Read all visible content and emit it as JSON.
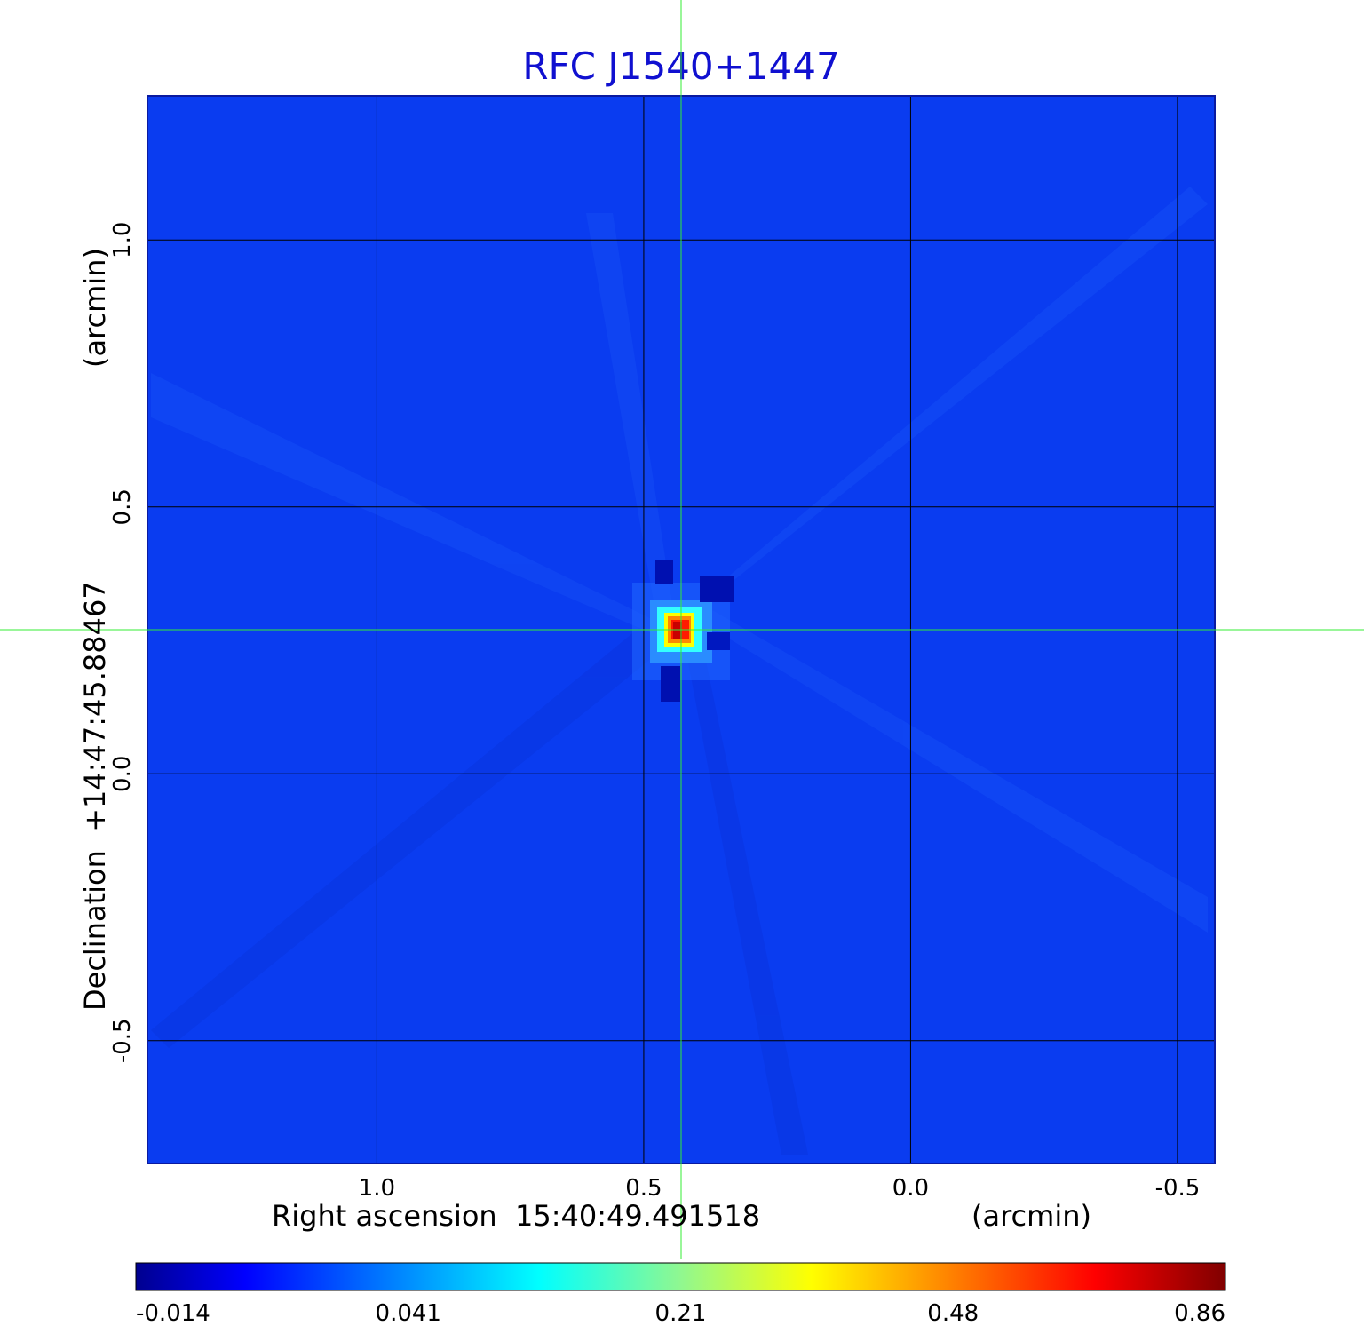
{
  "chart_data": {
    "type": "heatmap",
    "title": "RFC J1540+1447",
    "xlabel": "Right ascension  15:40:49.491518",
    "xunit": "(arcmin)",
    "ylabel": "Declination  +14:47:45.88467",
    "yunit": "(arcmin)",
    "x_axis_reversed": true,
    "xlim": [
      1.43,
      -0.57
    ],
    "ylim": [
      -0.73,
      1.27
    ],
    "x_ticks": [
      {
        "value": 1.0,
        "label": "1.0"
      },
      {
        "value": 0.5,
        "label": "0.5"
      },
      {
        "value": 0.0,
        "label": "0.0"
      },
      {
        "value": -0.5,
        "label": "-0.5"
      }
    ],
    "y_ticks": [
      {
        "value": 1.0,
        "label": "1.0"
      },
      {
        "value": 0.5,
        "label": "0.5"
      },
      {
        "value": 0.0,
        "label": "0.0"
      },
      {
        "value": -0.5,
        "label": "-0.5"
      }
    ],
    "grid": true,
    "source_peak": {
      "x": 0.43,
      "y": 0.27,
      "value": 0.86
    },
    "crosshair": {
      "x": 0.43,
      "y": 0.27
    },
    "colorbar": {
      "ticks": [
        "-0.014",
        "0.041",
        "0.21",
        "0.48",
        "0.86"
      ],
      "colormap": "jet",
      "colors": [
        "#00008f",
        "#0000ff",
        "#00ffff",
        "#ffff00",
        "#ff0000",
        "#800000"
      ]
    },
    "background_color": "#0a3cf0",
    "crosshair_color": "#33ee33",
    "title_color": "#1010d0"
  }
}
